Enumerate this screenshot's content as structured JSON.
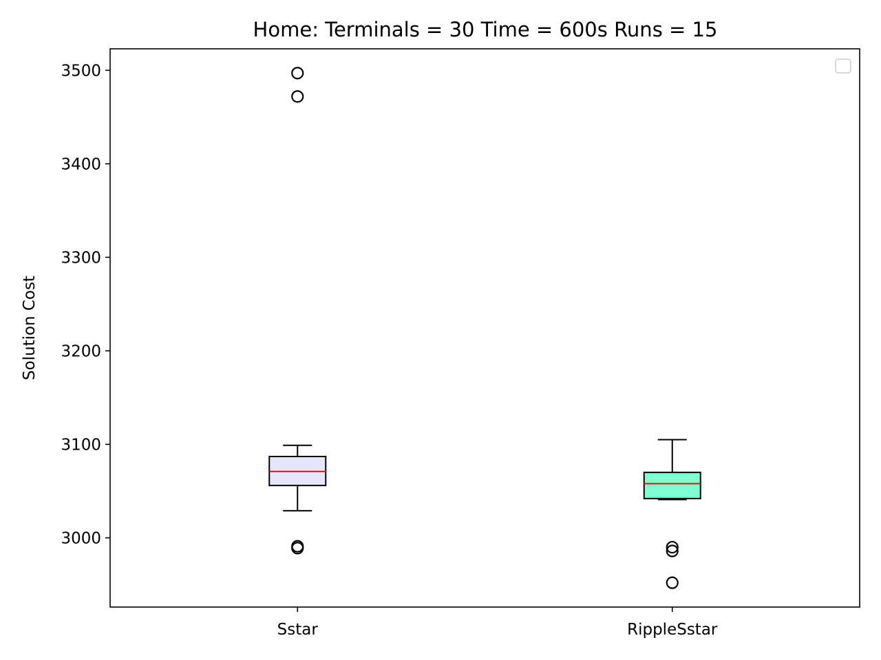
{
  "chart_data": {
    "type": "box",
    "title": "Home:  Terminals = 30  Time = 600s  Runs = 15",
    "xlabel": "",
    "ylabel": "Solution Cost",
    "ylim": [
      2926,
      3523
    ],
    "yticks": [
      3000,
      3100,
      3200,
      3300,
      3400,
      3500
    ],
    "categories": [
      "Sstar",
      "RippleSstar"
    ],
    "legend": {
      "placement": "upper right",
      "entries": []
    },
    "grid": false,
    "boxes": [
      {
        "category": "Sstar",
        "fill": "#e6e6fa",
        "whisker_low": 3029,
        "q1": 3056,
        "median": 3071,
        "q3": 3087,
        "whisker_high": 3099,
        "outliers": [
          3497,
          3472,
          2991,
          2989
        ]
      },
      {
        "category": "RippleSstar",
        "fill": "#7fffd4",
        "whisker_low": 3041,
        "q1": 3042,
        "median": 3058,
        "q3": 3070,
        "whisker_high": 3105,
        "outliers": [
          2990,
          2986,
          2952
        ]
      }
    ],
    "colors": {
      "median": "#ff0000",
      "frame": "#000000",
      "outlier": "#000000"
    }
  }
}
